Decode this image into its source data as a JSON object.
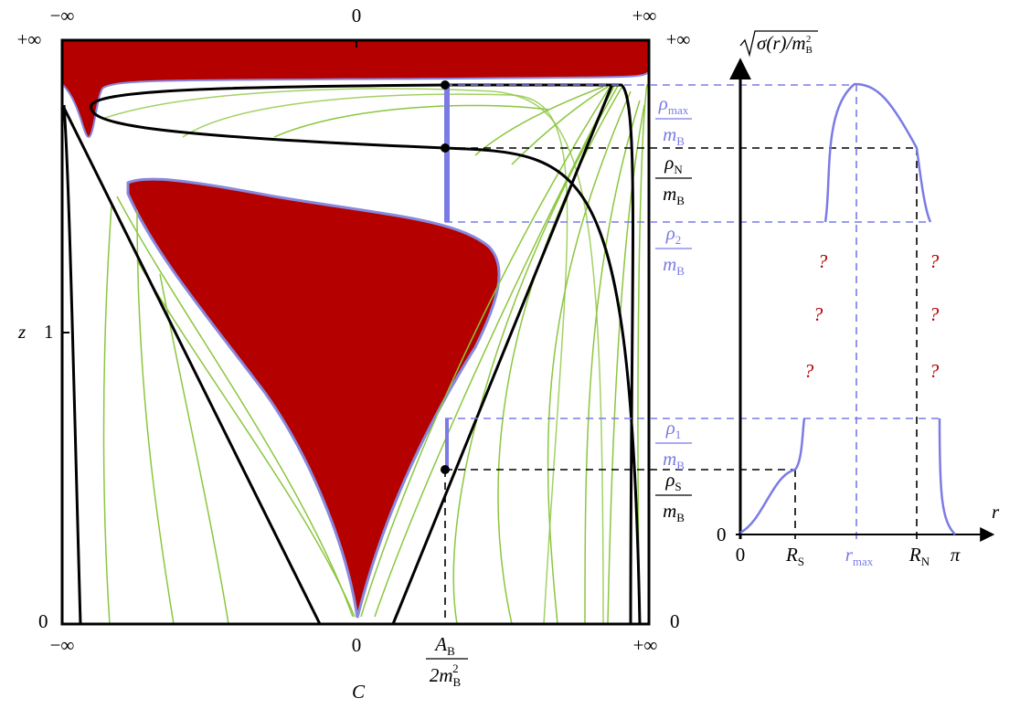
{
  "left_plot": {
    "top_axis": [
      "−∞",
      "0",
      "+∞"
    ],
    "top_left_corner": "+∞",
    "top_right_corner": "+∞",
    "y_axis": {
      "label": "z",
      "tick_1": "1",
      "tick_0": "0"
    },
    "right_bottom_tick": "0",
    "bottom_axis": [
      "−∞",
      "0",
      "+∞"
    ],
    "marker": {
      "numerator": {
        "text": "A",
        "sub": "B"
      },
      "denominator": {
        "text": "2m",
        "sub": "B",
        "sup": "2"
      }
    },
    "x_label": "C"
  },
  "right_plot": {
    "y_label": {
      "text": "σ(r)/m",
      "sub": "B",
      "sup": "2"
    },
    "x_label": "r",
    "y_origin": "0",
    "x_origin": "0",
    "x_ticks": [
      {
        "text": "R",
        "sub": "S"
      },
      {
        "text": "r",
        "sub": "max"
      },
      {
        "text": "R",
        "sub": "N"
      },
      {
        "text": "π"
      }
    ],
    "levels": [
      {
        "numerator": {
          "text": "ρ",
          "sub": "max"
        },
        "denominator": {
          "text": "m",
          "sub": "B"
        },
        "color": "#7b7be6"
      },
      {
        "numerator": {
          "text": "ρ",
          "sub": "N"
        },
        "denominator": {
          "text": "m",
          "sub": "B"
        },
        "color": "#000000"
      },
      {
        "numerator": {
          "text": "ρ",
          "sub": "2"
        },
        "denominator": {
          "text": "m",
          "sub": "B"
        },
        "color": "#7b7be6"
      },
      {
        "numerator": {
          "text": "ρ",
          "sub": "1"
        },
        "denominator": {
          "text": "m",
          "sub": "B"
        },
        "color": "#7b7be6"
      },
      {
        "numerator": {
          "text": "ρ",
          "sub": "S"
        },
        "denominator": {
          "text": "m",
          "sub": "B"
        },
        "color": "#000000"
      }
    ],
    "unknowns": [
      "?",
      "?",
      "?",
      "?",
      "?",
      "?"
    ]
  }
}
